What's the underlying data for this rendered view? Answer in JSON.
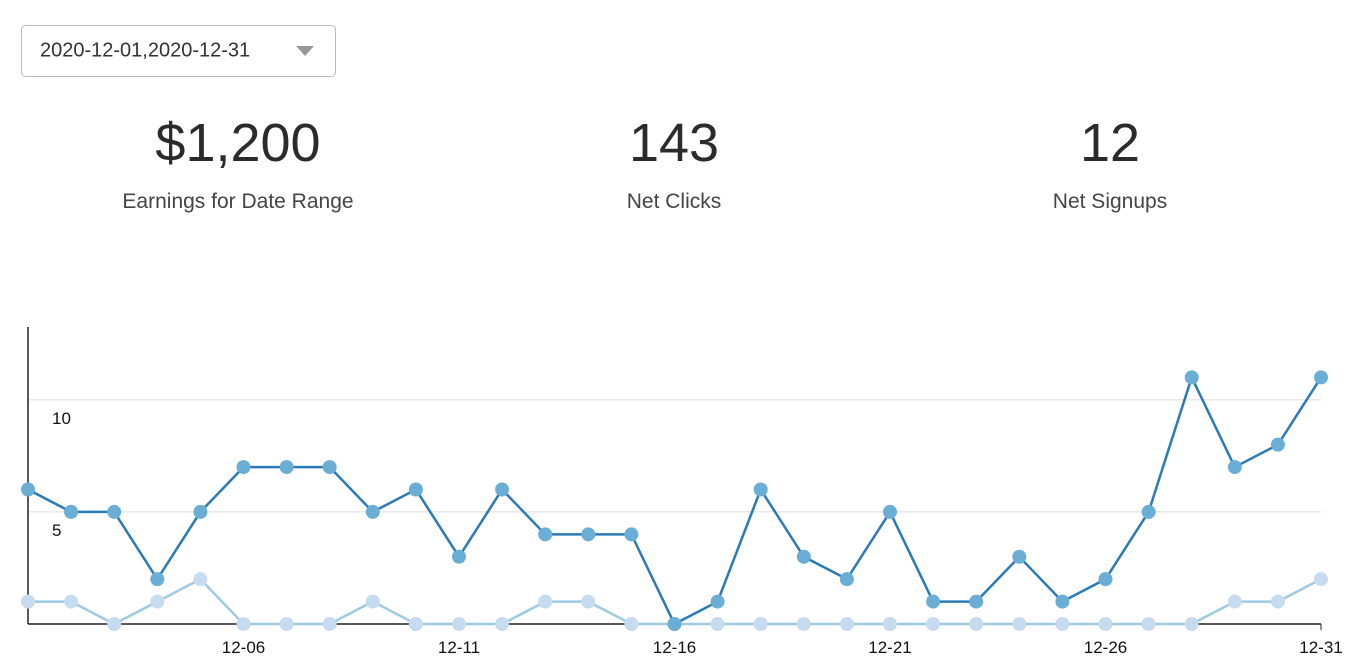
{
  "date_range": "2020-12-01,2020-12-31",
  "stats": [
    {
      "value": "$1,200",
      "label": "Earnings for Date Range"
    },
    {
      "value": "143",
      "label": "Net Clicks"
    },
    {
      "value": "12",
      "label": "Net Signups"
    }
  ],
  "chart_data": {
    "type": "line",
    "categories": [
      null,
      null,
      null,
      null,
      null,
      "12-06",
      null,
      null,
      null,
      null,
      "12-11",
      null,
      null,
      null,
      null,
      "12-16",
      null,
      null,
      null,
      null,
      "12-21",
      null,
      null,
      null,
      null,
      "12-26",
      null,
      null,
      null,
      null,
      "12-31"
    ],
    "series": [
      {
        "color": "#2a7ab8",
        "marker_color": "#6aaed6",
        "values": [
          6,
          5,
          5,
          2,
          5,
          7,
          7,
          7,
          5,
          6,
          3,
          6,
          4,
          4,
          4,
          0,
          1,
          6,
          3,
          2,
          5,
          1,
          1,
          3,
          1,
          2,
          5,
          11,
          7,
          8,
          11
        ]
      },
      {
        "color": "#9ecae1",
        "marker_color": "#c6dbef",
        "values": [
          1,
          1,
          0,
          1,
          2,
          0,
          0,
          0,
          1,
          0,
          0,
          0,
          1,
          1,
          0,
          0,
          0,
          0,
          0,
          0,
          0,
          0,
          0,
          0,
          0,
          0,
          0,
          0,
          1,
          1,
          2
        ]
      }
    ],
    "ylim": [
      0,
      13.25
    ],
    "yticks": [
      5,
      10
    ],
    "grid": true
  }
}
